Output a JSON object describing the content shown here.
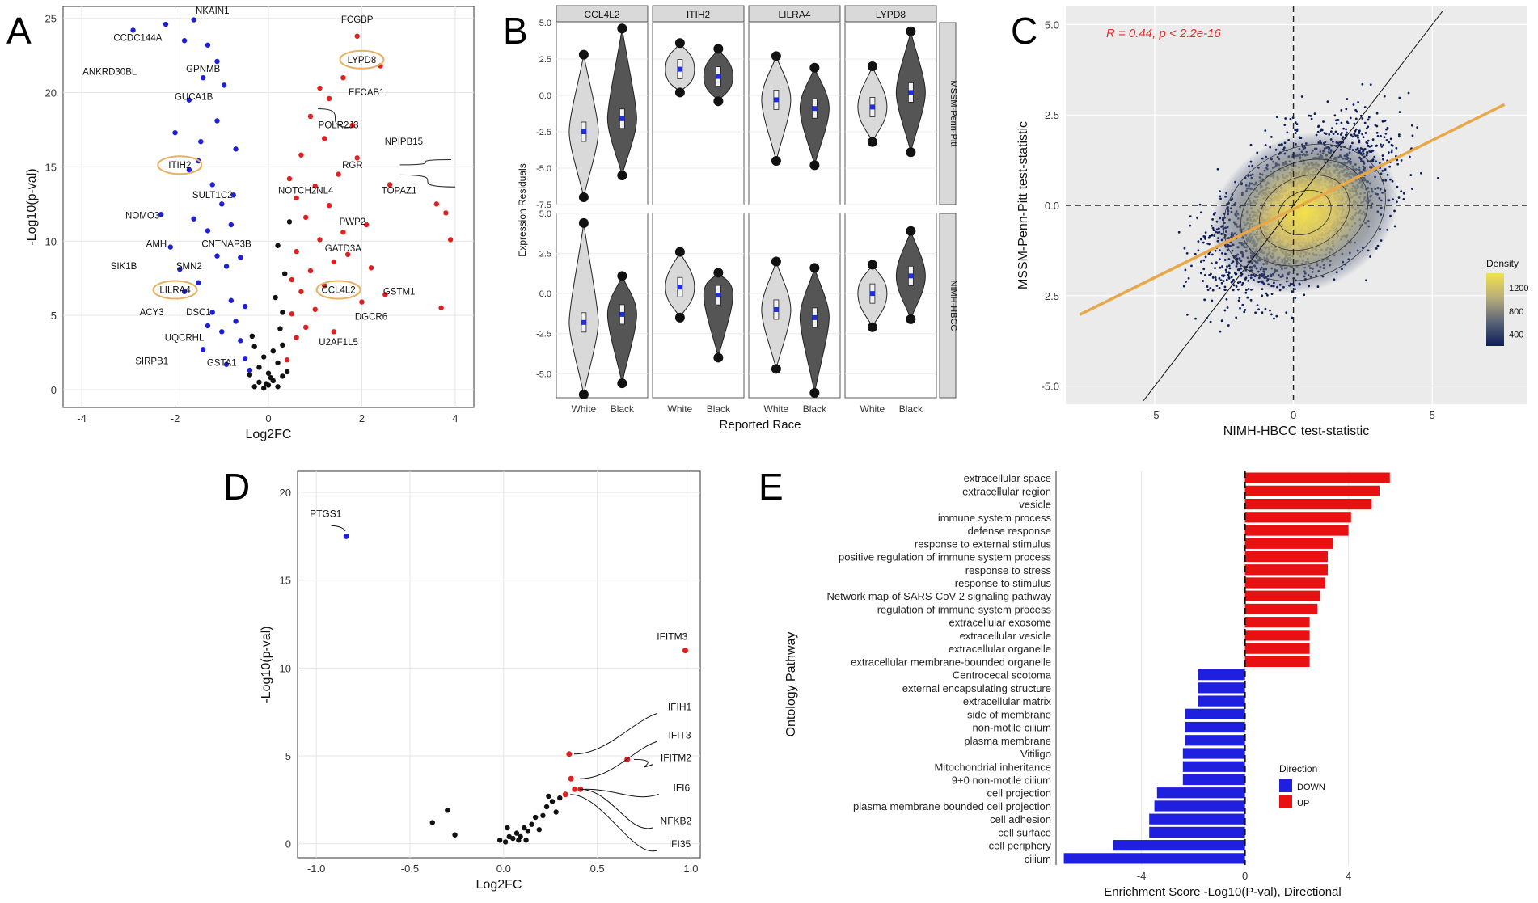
{
  "figure": {
    "panel_labels": [
      "A",
      "B",
      "C",
      "D",
      "E"
    ]
  },
  "chart_data": [
    {
      "panel": "A",
      "type": "scatter",
      "title": "",
      "xlabel": "Log2FC",
      "ylabel": "-Log10(p-val)",
      "xlim": [
        -4.4,
        4.4
      ],
      "ylim": [
        -1.2,
        25.8
      ],
      "x_ticks": [
        -4,
        -2,
        0,
        2,
        4
      ],
      "y_ticks": [
        0,
        5,
        10,
        15,
        20,
        25
      ],
      "colors": {
        "down": "#1f1fd6",
        "up": "#e02020",
        "ns": "#111111",
        "highlight": "#e8b060"
      },
      "points": {
        "down": [
          [
            -2.9,
            24.2
          ],
          [
            -2.2,
            24.6
          ],
          [
            -1.8,
            23.5
          ],
          [
            -1.6,
            24.9
          ],
          [
            -1.3,
            23.2
          ],
          [
            -1.1,
            22.1
          ],
          [
            -1.4,
            21.0
          ],
          [
            -1.7,
            19.5
          ],
          [
            -2.0,
            17.3
          ],
          [
            -1.5,
            15.4
          ],
          [
            -1.2,
            13.8
          ],
          [
            -1.0,
            12.5
          ],
          [
            -1.6,
            11.5
          ],
          [
            -1.3,
            10.7
          ],
          [
            -2.1,
            9.6
          ],
          [
            -1.1,
            9.0
          ],
          [
            -0.9,
            8.3
          ],
          [
            -1.5,
            7.2
          ],
          [
            -1.8,
            6.6
          ],
          [
            -0.8,
            6.0
          ],
          [
            -1.2,
            5.2
          ],
          [
            -0.7,
            4.6
          ],
          [
            -1.0,
            3.9
          ],
          [
            -0.6,
            3.3
          ],
          [
            -1.4,
            2.7
          ],
          [
            -0.5,
            2.1
          ],
          [
            -0.9,
            1.7
          ],
          [
            -0.4,
            1.3
          ],
          [
            -1.7,
            14.8
          ],
          [
            -0.7,
            16.2
          ],
          [
            -1.1,
            18.1
          ],
          [
            -0.8,
            11.1
          ],
          [
            -0.6,
            8.9
          ],
          [
            -0.5,
            5.6
          ],
          [
            -2.3,
            11.8
          ],
          [
            -1.9,
            8.1
          ],
          [
            -1.3,
            4.3
          ],
          [
            -0.95,
            20.5
          ],
          [
            -1.45,
            16.7
          ],
          [
            -0.75,
            13.1
          ]
        ],
        "up": [
          [
            0.4,
            2.0
          ],
          [
            0.6,
            3.5
          ],
          [
            0.5,
            5.1
          ],
          [
            0.8,
            4.2
          ],
          [
            0.7,
            6.6
          ],
          [
            1.0,
            5.4
          ],
          [
            0.9,
            8.0
          ],
          [
            1.2,
            7.0
          ],
          [
            0.6,
            9.3
          ],
          [
            1.1,
            10.1
          ],
          [
            1.4,
            8.6
          ],
          [
            0.8,
            11.6
          ],
          [
            1.3,
            12.4
          ],
          [
            1.6,
            10.6
          ],
          [
            1.0,
            13.7
          ],
          [
            1.5,
            14.5
          ],
          [
            0.7,
            15.8
          ],
          [
            1.2,
            16.9
          ],
          [
            0.9,
            18.4
          ],
          [
            1.3,
            19.6
          ],
          [
            1.6,
            21.0
          ],
          [
            1.9,
            23.8
          ],
          [
            2.4,
            21.8
          ],
          [
            1.9,
            15.6
          ],
          [
            2.6,
            13.8
          ],
          [
            3.8,
            11.9
          ],
          [
            3.7,
            5.5
          ],
          [
            3.9,
            10.1
          ],
          [
            2.0,
            5.9
          ],
          [
            2.5,
            6.4
          ],
          [
            3.6,
            12.5
          ],
          [
            1.8,
            17.8
          ],
          [
            1.1,
            20.3
          ],
          [
            0.6,
            12.9
          ],
          [
            1.7,
            9.1
          ],
          [
            2.1,
            11.1
          ],
          [
            0.5,
            7.4
          ],
          [
            1.4,
            3.9
          ],
          [
            0.45,
            14.2
          ],
          [
            2.2,
            8.2
          ]
        ],
        "ns": [
          [
            -0.3,
            0.2
          ],
          [
            -0.2,
            0.5
          ],
          [
            -0.1,
            0.1
          ],
          [
            0.0,
            0.3
          ],
          [
            0.1,
            0.6
          ],
          [
            0.2,
            0.2
          ],
          [
            0.3,
            0.9
          ],
          [
            -0.4,
            1.0
          ],
          [
            0.4,
            1.2
          ],
          [
            -0.2,
            1.5
          ],
          [
            0.2,
            1.8
          ],
          [
            0.0,
            1.1
          ],
          [
            -0.1,
            2.2
          ],
          [
            0.1,
            2.6
          ],
          [
            0.3,
            3.0
          ],
          [
            -0.3,
            2.9
          ],
          [
            0.25,
            4.1
          ],
          [
            0.15,
            6.2
          ],
          [
            0.35,
            7.8
          ],
          [
            0.2,
            9.7
          ],
          [
            0.45,
            11.3
          ],
          [
            -0.35,
            3.6
          ],
          [
            0.05,
            0.8
          ],
          [
            -0.05,
            0.4
          ],
          [
            0.3,
            5.2
          ]
        ]
      },
      "labels": [
        "NKAIN1",
        "CCDC144A",
        "ANKRD30BL",
        "GPNMB",
        "GUCA1B",
        "ITIH2",
        "SULT1C2",
        "NOMO3",
        "AMH",
        "CNTNAP3B",
        "SIK1B",
        "SMN2",
        "LILRA4",
        "ACY3",
        "DSC1",
        "UQCRHL",
        "SIRPB1",
        "GSTA1",
        "FCGBP",
        "LYPD8",
        "EFCAB1",
        "POLR2J3",
        "NPIPB15",
        "RGR",
        "TOPAZ1",
        "NOTCH2NL4",
        "PWP2",
        "GATD3A",
        "CCL4L2",
        "GSTM1",
        "DGCR6",
        "U2AF1L5"
      ],
      "highlighted": [
        "ITIH2",
        "LILRA4",
        "LYPD8",
        "CCL4L2"
      ]
    },
    {
      "panel": "B",
      "type": "violin",
      "xlabel": "Reported Race",
      "ylabel": "Expression Residuals",
      "categories": [
        "White",
        "Black"
      ],
      "facet_columns": [
        "CCL4L2",
        "ITIH2",
        "LILRA4",
        "LYPD8"
      ],
      "facet_rows": [
        "MSSM-Penn-Pitt",
        "NIMH-HBCC"
      ],
      "row_ylims": [
        [
          -7.5,
          5.0
        ],
        [
          -6.5,
          5.0
        ]
      ],
      "row_y_ticks": [
        [
          -7.5,
          -5.0,
          -2.5,
          0.0,
          2.5,
          5.0
        ],
        [
          -5.0,
          -2.5,
          0.0,
          2.5,
          5.0
        ]
      ],
      "colors": {
        "White": "#d9d9d9",
        "Black": "#555555",
        "mean": "#1f2fe0"
      },
      "medians": {
        "MSSM-Penn-Pitt": {
          "CCL4L2": [
            -2.5,
            -1.6
          ],
          "ITIH2": [
            1.8,
            1.3
          ],
          "LILRA4": [
            -0.3,
            -0.9
          ],
          "LYPD8": [
            -0.8,
            0.2
          ]
        },
        "NIMH-HBCC": {
          "CCL4L2": [
            -1.8,
            -1.3
          ],
          "ITIH2": [
            0.4,
            -0.1
          ],
          "LILRA4": [
            -1.0,
            -1.5
          ],
          "LYPD8": [
            0.0,
            1.1
          ]
        }
      },
      "ranges": {
        "MSSM-Penn-Pitt": {
          "CCL4L2": [
            [
              -7.0,
              2.8
            ],
            [
              -5.5,
              4.6
            ]
          ],
          "ITIH2": [
            [
              0.2,
              3.6
            ],
            [
              -0.4,
              3.2
            ]
          ],
          "LILRA4": [
            [
              -4.5,
              2.7
            ],
            [
              -4.8,
              1.9
            ]
          ],
          "LYPD8": [
            [
              -3.2,
              2.0
            ],
            [
              -3.9,
              4.4
            ]
          ]
        },
        "NIMH-HBCC": {
          "CCL4L2": [
            [
              -6.3,
              4.4
            ],
            [
              -5.6,
              1.1
            ]
          ],
          "ITIH2": [
            [
              -1.5,
              2.6
            ],
            [
              -4.0,
              1.3
            ]
          ],
          "LILRA4": [
            [
              -4.7,
              2.0
            ],
            [
              -6.2,
              1.6
            ]
          ],
          "LYPD8": [
            [
              -2.1,
              1.8
            ],
            [
              -1.6,
              3.9
            ]
          ]
        }
      }
    },
    {
      "panel": "C",
      "type": "scatter",
      "xlabel": "NIMH-HBCC test-statistic",
      "ylabel": "MSSM-Penn-Pitt test-statistic",
      "xlim": [
        -8.2,
        8.4
      ],
      "ylim": [
        -5.5,
        5.5
      ],
      "x_ticks": [
        -5,
        0,
        5
      ],
      "y_ticks": [
        -5.0,
        -2.5,
        0.0,
        2.5,
        5.0
      ],
      "annotation": "R = 0.44, p < 2.2e-16",
      "annotation_color": "#e03030",
      "fit_line": {
        "slope": 0.38,
        "intercept": -0.1,
        "color": "#e8a848"
      },
      "identity_line": {
        "slope": 1.0,
        "intercept": 0.0
      },
      "legend": {
        "title": "Density",
        "ticks": [
          400,
          800,
          1200
        ],
        "colors": [
          "#0d1d5a",
          "#5a6578",
          "#b9ae7a",
          "#f3e14a"
        ],
        "position": "right"
      }
    },
    {
      "panel": "D",
      "type": "scatter",
      "xlabel": "Log2FC",
      "ylabel": "-Log10(p-val)",
      "xlim": [
        -1.1,
        1.05
      ],
      "ylim": [
        -0.8,
        21.2
      ],
      "x_ticks": [
        -1.0,
        -0.5,
        0.0,
        0.5,
        1.0
      ],
      "y_ticks": [
        0,
        5,
        10,
        15,
        20
      ],
      "colors": {
        "down": "#1f1fd6",
        "up": "#e02020",
        "ns": "#111111"
      },
      "points": {
        "down": [
          [
            -0.84,
            17.5
          ]
        ],
        "up": [
          [
            0.97,
            11.0
          ],
          [
            0.35,
            5.1
          ],
          [
            0.66,
            4.8
          ],
          [
            0.36,
            3.7
          ],
          [
            0.38,
            3.1
          ],
          [
            0.41,
            3.1
          ],
          [
            0.33,
            2.8
          ]
        ],
        "ns": [
          [
            -0.38,
            1.2
          ],
          [
            -0.3,
            1.9
          ],
          [
            -0.26,
            0.5
          ],
          [
            -0.02,
            0.2
          ],
          [
            0.01,
            0.1
          ],
          [
            0.03,
            0.4
          ],
          [
            0.05,
            0.3
          ],
          [
            0.07,
            0.6
          ],
          [
            0.09,
            0.4
          ],
          [
            0.11,
            0.9
          ],
          [
            0.13,
            0.7
          ],
          [
            0.15,
            1.1
          ],
          [
            0.17,
            1.5
          ],
          [
            0.19,
            0.8
          ],
          [
            0.21,
            1.6
          ],
          [
            0.23,
            2.1
          ],
          [
            0.24,
            2.7
          ],
          [
            0.26,
            2.4
          ],
          [
            0.28,
            1.8
          ],
          [
            0.3,
            2.6
          ],
          [
            0.02,
            0.9
          ],
          [
            0.08,
            0.2
          ],
          [
            0.12,
            0.2
          ]
        ]
      },
      "labels": [
        "PTGS1",
        "IFITM3",
        "IFIH1",
        "IFIT3",
        "IFITM2",
        "IFI6",
        "NFKB2",
        "IFI35"
      ]
    },
    {
      "panel": "E",
      "type": "bar",
      "orientation": "horizontal",
      "xlabel": "Enrichment Score -Log10(P-val), Directional",
      "ylabel": "Ontology Pathway",
      "xlim": [
        -7.3,
        6.2
      ],
      "x_ticks": [
        -4,
        0,
        4
      ],
      "legend": {
        "title": "Direction",
        "entries": [
          "DOWN",
          "UP"
        ],
        "colors": [
          "#1f1fe0",
          "#e81010"
        ]
      },
      "categories": [
        "extracellular space",
        "extracellular region",
        "vesicle",
        "immune system process",
        "defense response",
        "response to external stimulus",
        "positive regulation of immune system process",
        "response to stress",
        "response to stimulus",
        "Network map of SARS-CoV-2 signaling pathway",
        "regulation of immune system process",
        "extracellular exosome",
        "extracellular vesicle",
        "extracellular organelle",
        "extracellular membrane-bounded organelle",
        "Centrocecal scotoma",
        "external encapsulating structure",
        "extracellular matrix",
        "side of membrane",
        "non-motile cilium",
        "plasma membrane",
        "Vitiligo",
        "Mitochondrial inheritance",
        "9+0 non-motile cilium",
        "cell projection",
        "plasma membrane bounded cell projection",
        "cell adhesion",
        "cell surface",
        "cell periphery",
        "cilium"
      ],
      "values": [
        5.6,
        5.2,
        4.9,
        4.1,
        4.0,
        3.4,
        3.2,
        3.2,
        3.1,
        2.9,
        2.8,
        2.5,
        2.5,
        2.5,
        2.5,
        -1.8,
        -1.8,
        -1.8,
        -2.3,
        -2.3,
        -2.3,
        -2.4,
        -2.4,
        -2.4,
        -3.4,
        -3.5,
        -3.7,
        -3.7,
        -5.1,
        -7.0
      ]
    }
  ]
}
